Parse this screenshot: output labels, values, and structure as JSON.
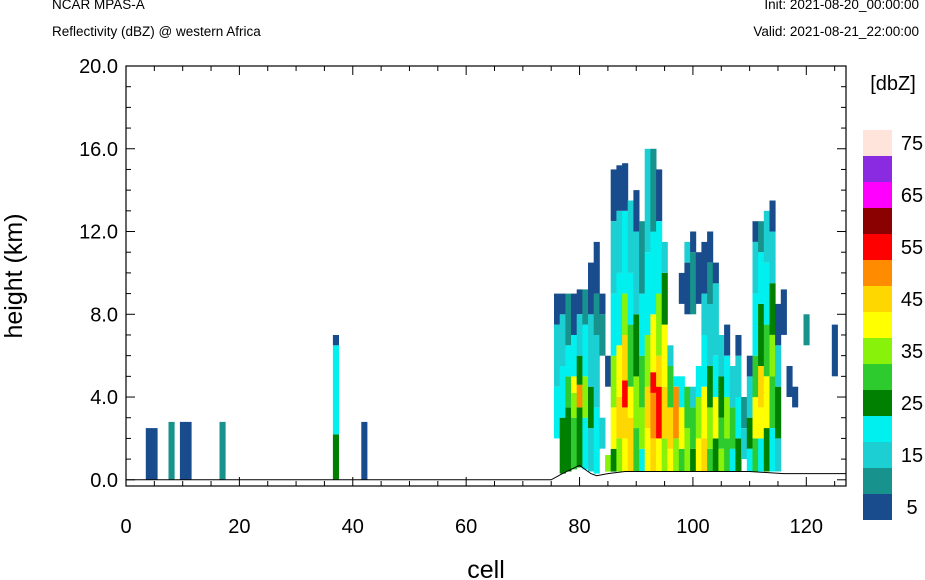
{
  "header": {
    "model": "NCAR MPAS-A",
    "field": "Reflectivity (dBZ) @ western Africa",
    "init": "Init: 2021-08-20_00:00:00",
    "valid": "Valid: 2021-08-21_22:00:00"
  },
  "chart_data": {
    "type": "heatmap",
    "title": "Reflectivity (dBZ) @ western Africa",
    "xlabel": "cell",
    "ylabel": "height (km)",
    "xlim": [
      0,
      127
    ],
    "ylim": [
      -0.3,
      20.0
    ],
    "xticks": [
      0,
      20,
      40,
      60,
      80,
      100,
      120
    ],
    "yticks": [
      "0.0",
      "4.0",
      "8.0",
      "12.0",
      "16.0",
      "20.0"
    ],
    "colorbar": {
      "units": "[dbZ]",
      "levels": [
        5,
        10,
        15,
        20,
        25,
        30,
        35,
        40,
        45,
        50,
        55,
        60,
        65,
        70,
        75
      ],
      "labels": [
        "5",
        "15",
        "25",
        "35",
        "45",
        "55",
        "65",
        "75"
      ],
      "colors": [
        "#184c8c",
        "#17928c",
        "#1ccfd2",
        "#00f0f0",
        "#008000",
        "#2dcb2d",
        "#88f20a",
        "#ffff00",
        "#ffd700",
        "#ff8c00",
        "#ff0000",
        "#8b0000",
        "#ff00ff",
        "#8a2be2",
        "#ffe4dc"
      ]
    },
    "columns": [
      {
        "x": 4,
        "bands": [
          [
            0.0,
            2.5,
            5
          ]
        ]
      },
      {
        "x": 5,
        "bands": [
          [
            0.0,
            2.5,
            5
          ]
        ]
      },
      {
        "x": 8,
        "bands": [
          [
            0.0,
            2.8,
            10
          ]
        ]
      },
      {
        "x": 10,
        "bands": [
          [
            0.0,
            2.8,
            5
          ]
        ]
      },
      {
        "x": 11,
        "bands": [
          [
            0.0,
            2.8,
            5
          ]
        ]
      },
      {
        "x": 17,
        "bands": [
          [
            0.0,
            2.8,
            10
          ]
        ]
      },
      {
        "x": 37,
        "bands": [
          [
            0.0,
            2.2,
            25
          ],
          [
            2.2,
            6.5,
            20
          ],
          [
            6.5,
            7.0,
            5
          ]
        ]
      },
      {
        "x": 42,
        "bands": [
          [
            0.0,
            2.8,
            5
          ]
        ]
      },
      {
        "x": 76,
        "bands": [
          [
            2.0,
            4.5,
            20
          ],
          [
            4.5,
            7.5,
            15
          ],
          [
            7.5,
            9.0,
            5
          ]
        ]
      },
      {
        "x": 77,
        "bands": [
          [
            0.3,
            3.0,
            25
          ],
          [
            3.0,
            5.5,
            20
          ],
          [
            5.5,
            8.0,
            15
          ],
          [
            8.0,
            9.0,
            5
          ]
        ]
      },
      {
        "x": 78,
        "bands": [
          [
            0.4,
            3.5,
            25
          ],
          [
            3.5,
            5.0,
            30
          ],
          [
            5.0,
            6.5,
            20
          ],
          [
            6.5,
            9.0,
            10
          ]
        ]
      },
      {
        "x": 79,
        "bands": [
          [
            0.5,
            3.0,
            30
          ],
          [
            3.0,
            4.2,
            35
          ],
          [
            4.2,
            5.0,
            40
          ],
          [
            5.0,
            7.0,
            20
          ],
          [
            7.0,
            9.0,
            5
          ]
        ]
      },
      {
        "x": 80,
        "bands": [
          [
            0.6,
            3.5,
            25
          ],
          [
            3.5,
            4.6,
            50
          ],
          [
            4.6,
            6.0,
            25
          ],
          [
            6.0,
            8.0,
            15
          ],
          [
            8.0,
            9.2,
            5
          ]
        ]
      },
      {
        "x": 81,
        "bands": [
          [
            0.5,
            3.0,
            20
          ],
          [
            3.0,
            5.0,
            35
          ],
          [
            5.0,
            7.5,
            20
          ],
          [
            7.5,
            9.2,
            10
          ]
        ]
      },
      {
        "x": 82,
        "bands": [
          [
            0.4,
            2.5,
            15
          ],
          [
            2.5,
            4.5,
            25
          ],
          [
            4.5,
            8.0,
            15
          ],
          [
            8.0,
            10.5,
            5
          ]
        ]
      },
      {
        "x": 83,
        "bands": [
          [
            0.3,
            3.5,
            20
          ],
          [
            3.5,
            7.0,
            15
          ],
          [
            7.0,
            9.0,
            10
          ],
          [
            9.0,
            11.5,
            5
          ]
        ]
      },
      {
        "x": 84,
        "bands": [
          [
            1.5,
            3.0,
            15
          ],
          [
            6.0,
            8.0,
            10
          ],
          [
            8.0,
            9.0,
            5
          ]
        ]
      },
      {
        "x": 85,
        "bands": [
          [
            0.4,
            1.2,
            35
          ],
          [
            4.5,
            6.0,
            5
          ]
        ]
      },
      {
        "x": 86,
        "bands": [
          [
            0.4,
            1.5,
            25
          ],
          [
            1.5,
            3.5,
            40
          ],
          [
            3.5,
            6.0,
            35
          ],
          [
            6.0,
            9.0,
            20
          ],
          [
            9.0,
            12.5,
            15
          ],
          [
            12.5,
            15.0,
            5
          ]
        ]
      },
      {
        "x": 87,
        "bands": [
          [
            0.4,
            2.0,
            35
          ],
          [
            2.0,
            4.0,
            45
          ],
          [
            4.0,
            6.5,
            40
          ],
          [
            6.5,
            10.0,
            20
          ],
          [
            10.0,
            13.0,
            15
          ],
          [
            13.0,
            15.2,
            5
          ]
        ]
      },
      {
        "x": 88,
        "bands": [
          [
            0.4,
            2.0,
            40
          ],
          [
            2.0,
            3.5,
            45
          ],
          [
            3.5,
            4.8,
            55
          ],
          [
            4.8,
            7.0,
            45
          ],
          [
            7.0,
            9.0,
            35
          ],
          [
            9.0,
            13.0,
            20
          ],
          [
            13.0,
            15.3,
            5
          ]
        ]
      },
      {
        "x": 89,
        "bands": [
          [
            0.4,
            3.0,
            45
          ],
          [
            3.0,
            4.5,
            40
          ],
          [
            4.5,
            7.5,
            30
          ],
          [
            7.5,
            10.0,
            20
          ],
          [
            10.0,
            13.5,
            15
          ]
        ]
      },
      {
        "x": 90,
        "bands": [
          [
            0.4,
            2.5,
            30
          ],
          [
            2.5,
            5.0,
            35
          ],
          [
            5.0,
            8.0,
            25
          ],
          [
            8.0,
            12.0,
            15
          ],
          [
            12.0,
            14.0,
            5
          ]
        ]
      },
      {
        "x": 91,
        "bands": [
          [
            0.4,
            1.5,
            20
          ],
          [
            1.5,
            3.5,
            35
          ],
          [
            3.5,
            6.0,
            30
          ],
          [
            6.0,
            9.0,
            20
          ],
          [
            9.0,
            12.5,
            10
          ]
        ]
      },
      {
        "x": 92,
        "bands": [
          [
            0.4,
            2.5,
            40
          ],
          [
            2.5,
            4.5,
            45
          ],
          [
            4.5,
            7.0,
            35
          ],
          [
            7.0,
            11.0,
            20
          ],
          [
            11.0,
            16.0,
            15
          ]
        ]
      },
      {
        "x": 93,
        "bands": [
          [
            0.4,
            2.0,
            45
          ],
          [
            2.0,
            4.2,
            50
          ],
          [
            4.2,
            5.2,
            55
          ],
          [
            5.2,
            8.0,
            40
          ],
          [
            8.0,
            12.0,
            20
          ],
          [
            12.0,
            16.0,
            10
          ]
        ]
      },
      {
        "x": 94,
        "bands": [
          [
            0.4,
            2.0,
            40
          ],
          [
            2.0,
            4.5,
            55
          ],
          [
            4.5,
            6.0,
            45
          ],
          [
            6.0,
            9.0,
            35
          ],
          [
            9.0,
            12.5,
            20
          ],
          [
            12.5,
            15.0,
            5
          ]
        ]
      },
      {
        "x": 95,
        "bands": [
          [
            0.4,
            2.0,
            35
          ],
          [
            2.0,
            4.5,
            45
          ],
          [
            4.5,
            7.5,
            40
          ],
          [
            7.5,
            10.0,
            25
          ],
          [
            10.0,
            11.5,
            15
          ]
        ]
      },
      {
        "x": 96,
        "bands": [
          [
            0.4,
            1.5,
            40
          ],
          [
            1.5,
            3.5,
            45
          ],
          [
            3.5,
            5.5,
            30
          ],
          [
            5.5,
            6.5,
            15
          ]
        ]
      },
      {
        "x": 97,
        "bands": [
          [
            0.4,
            2.0,
            35
          ],
          [
            2.0,
            4.5,
            50
          ],
          [
            4.5,
            5.0,
            20
          ]
        ]
      },
      {
        "x": 98,
        "bands": [
          [
            0.4,
            1.5,
            30
          ],
          [
            1.5,
            3.5,
            40
          ],
          [
            3.5,
            5.0,
            20
          ],
          [
            8.5,
            10.0,
            5
          ]
        ]
      },
      {
        "x": 99,
        "bands": [
          [
            0.4,
            2.5,
            35
          ],
          [
            2.5,
            4.5,
            30
          ],
          [
            8.0,
            10.5,
            5
          ],
          [
            10.5,
            11.5,
            15
          ]
        ]
      },
      {
        "x": 100,
        "bands": [
          [
            0.4,
            1.5,
            25
          ],
          [
            1.5,
            3.5,
            30
          ],
          [
            3.5,
            4.5,
            15
          ],
          [
            8.0,
            11.0,
            10
          ],
          [
            11.0,
            12.0,
            5
          ]
        ]
      },
      {
        "x": 101,
        "bands": [
          [
            0.4,
            2.0,
            40
          ],
          [
            2.0,
            4.0,
            35
          ],
          [
            4.0,
            5.5,
            20
          ],
          [
            8.5,
            11.0,
            5
          ]
        ]
      },
      {
        "x": 102,
        "bands": [
          [
            0.4,
            2.0,
            45
          ],
          [
            2.0,
            4.5,
            40
          ],
          [
            4.5,
            7.0,
            20
          ],
          [
            7.0,
            9.0,
            15
          ],
          [
            9.0,
            11.5,
            5
          ]
        ]
      },
      {
        "x": 103,
        "bands": [
          [
            0.4,
            1.5,
            30
          ],
          [
            1.5,
            3.5,
            35
          ],
          [
            3.5,
            5.5,
            25
          ],
          [
            5.5,
            8.5,
            15
          ],
          [
            8.5,
            10.5,
            10
          ],
          [
            10.5,
            12.0,
            5
          ]
        ]
      },
      {
        "x": 104,
        "bands": [
          [
            0.4,
            2.0,
            25
          ],
          [
            2.0,
            4.0,
            40
          ],
          [
            4.0,
            6.0,
            20
          ],
          [
            6.0,
            9.5,
            15
          ],
          [
            9.5,
            10.5,
            5
          ]
        ]
      },
      {
        "x": 105,
        "bands": [
          [
            0.4,
            1.5,
            35
          ],
          [
            1.5,
            3.0,
            30
          ],
          [
            3.0,
            5.0,
            25
          ],
          [
            5.0,
            7.0,
            15
          ]
        ]
      },
      {
        "x": 106,
        "bands": [
          [
            0.4,
            2.0,
            30
          ],
          [
            2.0,
            4.0,
            35
          ],
          [
            4.0,
            6.0,
            20
          ],
          [
            6.0,
            7.5,
            5
          ]
        ]
      },
      {
        "x": 107,
        "bands": [
          [
            0.4,
            1.5,
            20
          ],
          [
            1.5,
            3.5,
            30
          ],
          [
            3.5,
            5.5,
            15
          ]
        ]
      },
      {
        "x": 108,
        "bands": [
          [
            0.4,
            2.0,
            25
          ],
          [
            2.0,
            4.0,
            20
          ],
          [
            4.0,
            6.0,
            15
          ],
          [
            6.0,
            7.0,
            5
          ]
        ]
      },
      {
        "x": 109,
        "bands": [
          [
            1.0,
            2.5,
            15
          ],
          [
            2.5,
            4.0,
            10
          ]
        ]
      },
      {
        "x": 110,
        "bands": [
          [
            0.4,
            1.5,
            20
          ],
          [
            1.5,
            3.0,
            25
          ],
          [
            3.0,
            5.0,
            15
          ],
          [
            5.0,
            6.0,
            5
          ]
        ]
      },
      {
        "x": 111,
        "bands": [
          [
            0.4,
            2.0,
            30
          ],
          [
            2.0,
            4.0,
            40
          ],
          [
            4.0,
            6.0,
            30
          ],
          [
            6.0,
            9.0,
            20
          ],
          [
            9.0,
            11.5,
            15
          ],
          [
            11.5,
            12.5,
            5
          ]
        ]
      },
      {
        "x": 112,
        "bands": [
          [
            0.4,
            2.0,
            20
          ],
          [
            2.0,
            3.5,
            40
          ],
          [
            3.5,
            5.5,
            45
          ],
          [
            5.5,
            8.5,
            25
          ],
          [
            8.5,
            11.0,
            20
          ],
          [
            11.0,
            12.5,
            10
          ]
        ]
      },
      {
        "x": 113,
        "bands": [
          [
            0.4,
            2.5,
            25
          ],
          [
            2.5,
            5.0,
            40
          ],
          [
            5.0,
            7.5,
            30
          ],
          [
            7.5,
            10.5,
            20
          ],
          [
            10.5,
            13.0,
            15
          ]
        ]
      },
      {
        "x": 114,
        "bands": [
          [
            0.4,
            2.5,
            20
          ],
          [
            2.5,
            5.0,
            30
          ],
          [
            5.0,
            7.0,
            35
          ],
          [
            7.0,
            9.5,
            25
          ],
          [
            9.5,
            12.0,
            15
          ],
          [
            12.0,
            13.5,
            5
          ]
        ]
      },
      {
        "x": 115,
        "bands": [
          [
            0.4,
            2.0,
            15
          ],
          [
            2.0,
            4.5,
            25
          ],
          [
            4.5,
            6.5,
            15
          ],
          [
            6.5,
            8.5,
            5
          ]
        ]
      },
      {
        "x": 116,
        "bands": [
          [
            7.0,
            9.2,
            5
          ]
        ]
      },
      {
        "x": 117,
        "bands": [
          [
            4.0,
            5.5,
            5
          ]
        ]
      },
      {
        "x": 118,
        "bands": [
          [
            3.5,
            4.5,
            5
          ]
        ]
      },
      {
        "x": 120,
        "bands": [
          [
            6.5,
            8.0,
            10
          ]
        ]
      },
      {
        "x": 125,
        "bands": [
          [
            5.0,
            7.5,
            5
          ]
        ]
      }
    ]
  }
}
